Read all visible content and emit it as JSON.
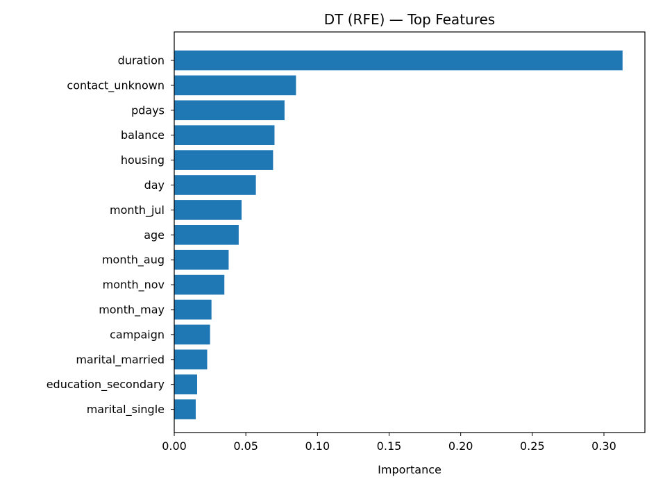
{
  "chart_data": {
    "type": "bar",
    "orientation": "horizontal",
    "title": "DT (RFE) — Top Features",
    "xlabel": "Importance",
    "ylabel": "",
    "categories": [
      "duration",
      "contact_unknown",
      "pdays",
      "balance",
      "housing",
      "day",
      "month_jul",
      "age",
      "month_aug",
      "month_nov",
      "month_may",
      "campaign",
      "marital_married",
      "education_secondary",
      "marital_single"
    ],
    "values": [
      0.313,
      0.085,
      0.077,
      0.07,
      0.069,
      0.057,
      0.047,
      0.045,
      0.038,
      0.035,
      0.026,
      0.025,
      0.023,
      0.016,
      0.015
    ],
    "xlim": [
      0,
      0.3286
    ],
    "xticks": [
      0.0,
      0.05,
      0.1,
      0.15,
      0.2,
      0.25,
      0.3
    ],
    "xtick_labels": [
      "0.00",
      "0.05",
      "0.10",
      "0.15",
      "0.20",
      "0.25",
      "0.30"
    ],
    "bar_color": "#1f77b4",
    "grid": false,
    "legend": "none"
  }
}
